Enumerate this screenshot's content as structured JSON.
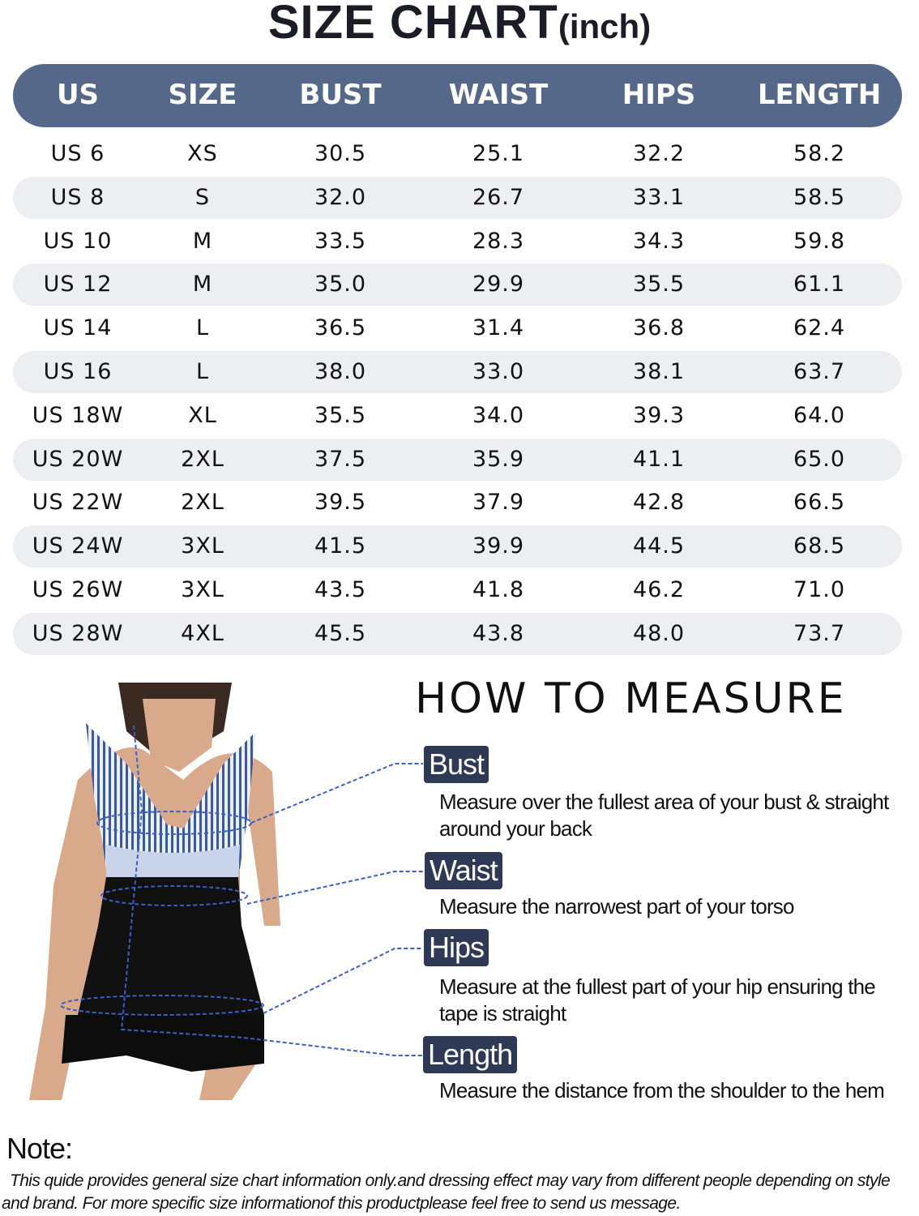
{
  "title": {
    "main": "SIZE CHART",
    "unit": "(inch)"
  },
  "colors": {
    "header_bg": "#56688a",
    "stripe_bg": "#eceef2",
    "badge_bg": "#2e3a55",
    "measure_line": "#3a5fc8"
  },
  "table": {
    "headers": [
      "US",
      "SIZE",
      "BUST",
      "WAIST",
      "HIPS",
      "LENGTH"
    ],
    "rows": [
      [
        "US 6",
        "XS",
        "30.5",
        "25.1",
        "32.2",
        "58.2"
      ],
      [
        "US 8",
        "S",
        "32.0",
        "26.7",
        "33.1",
        "58.5"
      ],
      [
        "US 10",
        "M",
        "33.5",
        "28.3",
        "34.3",
        "59.8"
      ],
      [
        "US 12",
        "M",
        "35.0",
        "29.9",
        "35.5",
        "61.1"
      ],
      [
        "US 14",
        "L",
        "36.5",
        "31.4",
        "36.8",
        "62.4"
      ],
      [
        "US 16",
        "L",
        "38.0",
        "33.0",
        "38.1",
        "63.7"
      ],
      [
        "US 18W",
        "XL",
        "35.5",
        "34.0",
        "39.3",
        "64.0"
      ],
      [
        "US 20W",
        "2XL",
        "37.5",
        "35.9",
        "41.1",
        "65.0"
      ],
      [
        "US 22W",
        "2XL",
        "39.5",
        "37.9",
        "42.8",
        "66.5"
      ],
      [
        "US 24W",
        "3XL",
        "41.5",
        "39.9",
        "44.5",
        "68.5"
      ],
      [
        "US 26W",
        "3XL",
        "43.5",
        "41.8",
        "46.2",
        "71.0"
      ],
      [
        "US 28W",
        "4XL",
        "45.5",
        "43.8",
        "48.0",
        "73.7"
      ]
    ]
  },
  "measure": {
    "title": "HOW TO MEASURE",
    "items": [
      {
        "label": "Bust",
        "text": "Measure over the fullest area of your bust & straight around your back"
      },
      {
        "label": "Waist",
        "text": "Measure the narrowest part of your torso"
      },
      {
        "label": "Hips",
        "text": "Measure at the fullest part of your hip ensuring the tape is straight"
      },
      {
        "label": "Length",
        "text": "Measure the distance from the shoulder to the hem"
      }
    ]
  },
  "note": {
    "title": "Note:",
    "text": "This quide provides general size chart information only.and dressing effect may vary from different people depending on style and  brand. For more specific size informationof this productplease feel free to send us message."
  }
}
